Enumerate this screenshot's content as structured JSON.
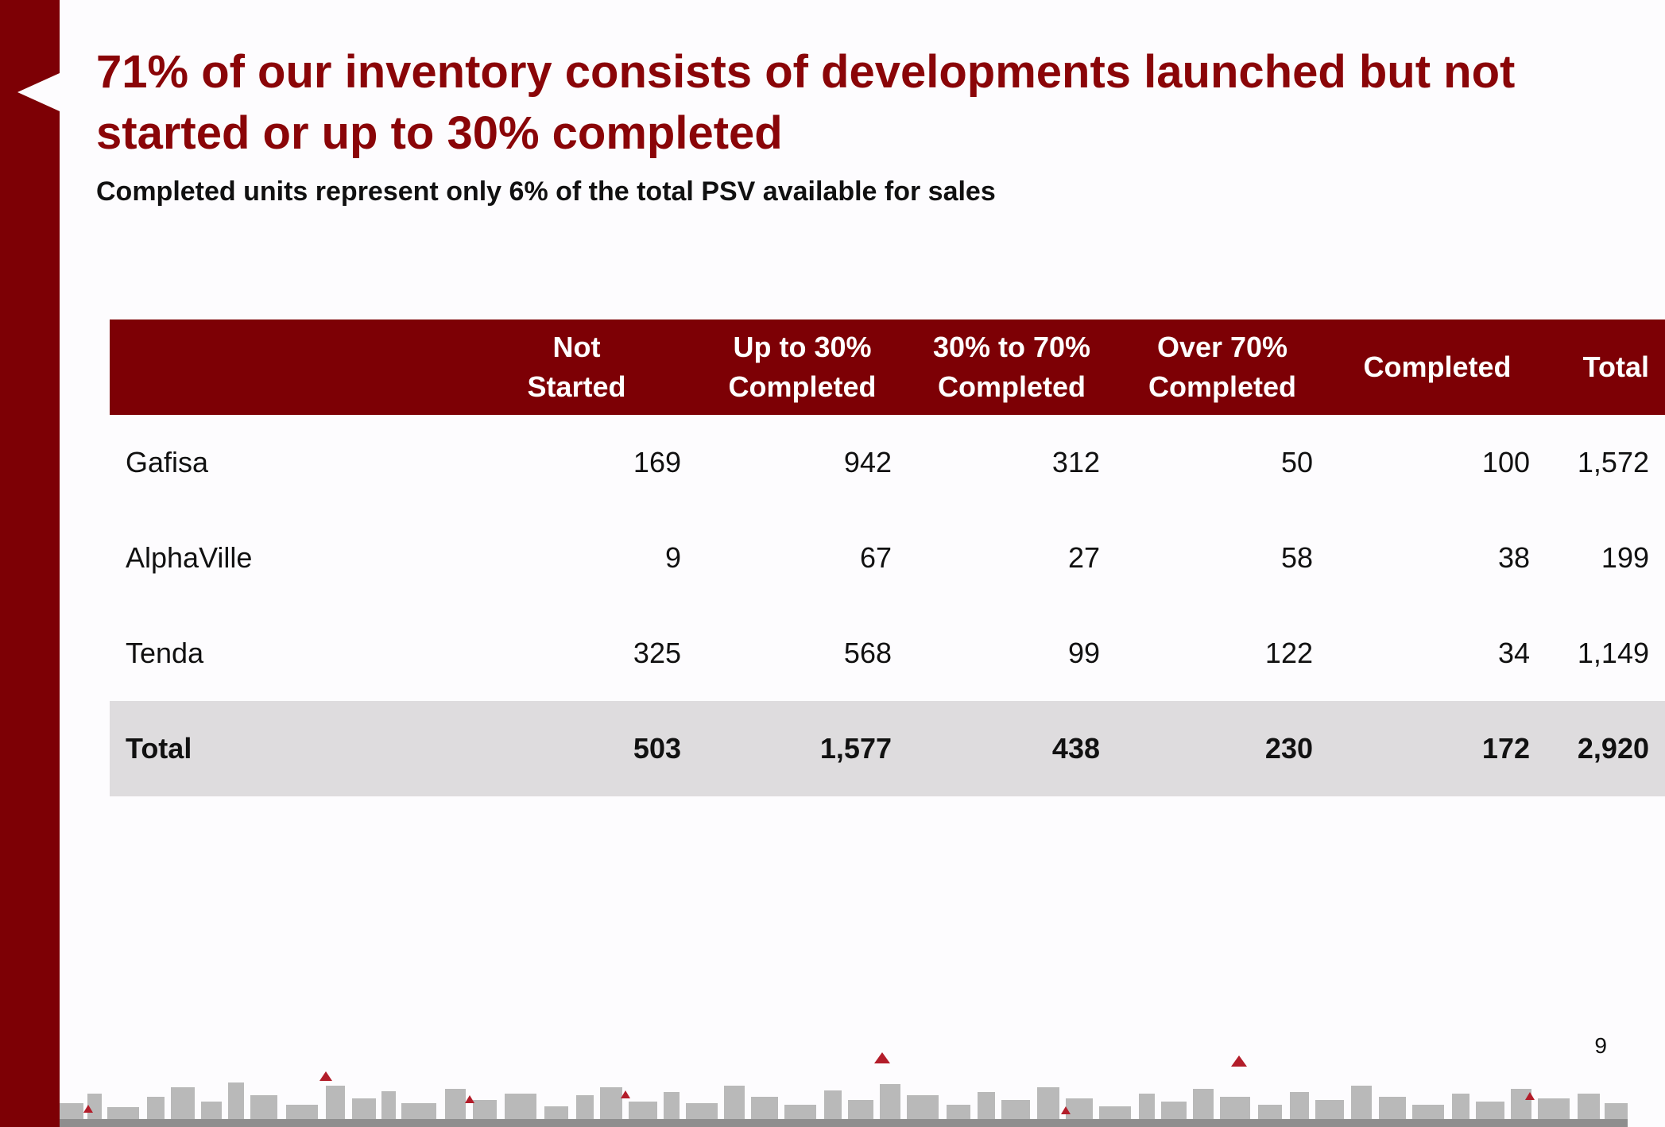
{
  "slide": {
    "title": "71% of our inventory consists of developments launched but not started or up to 30% completed",
    "subtitle": "Completed units represent only 6% of the total PSV available for sales",
    "page_number": "9"
  },
  "colors": {
    "brand": "#7d0005",
    "title": "#8a0508",
    "total_row_bg": "#dedcde"
  },
  "table": {
    "headers": [
      "",
      [
        "Not",
        "Started"
      ],
      [
        "Up to 30%",
        "Completed"
      ],
      [
        "30% to 70%",
        "Completed"
      ],
      [
        "Over 70%",
        "Completed"
      ],
      [
        "Completed"
      ],
      [
        "Total"
      ]
    ],
    "rows": [
      [
        "Gafisa",
        "169",
        "942",
        "312",
        "50",
        "100",
        "1,572"
      ],
      [
        "AlphaVille",
        "9",
        "67",
        "27",
        "58",
        "38",
        "199"
      ],
      [
        "Tenda",
        "325",
        "568",
        "99",
        "122",
        "34",
        "1,149"
      ]
    ],
    "total": [
      "Total",
      "503",
      "1,577",
      "438",
      "230",
      "172",
      "2,920"
    ]
  }
}
